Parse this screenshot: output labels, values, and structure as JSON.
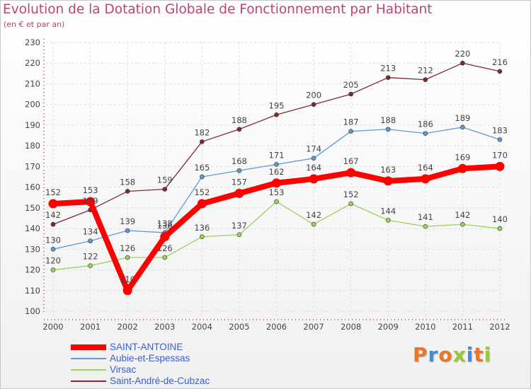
{
  "chart_data": {
    "type": "line",
    "title": "Evolution de la Dotation Globale de Fonctionnement par Habitant",
    "subtitle": "(en € et par an)",
    "xlabel": "",
    "ylabel": "",
    "ylim": [
      100,
      230
    ],
    "yticks": [
      100,
      110,
      120,
      130,
      140,
      150,
      160,
      170,
      180,
      190,
      200,
      210,
      220,
      230
    ],
    "grid": true,
    "categories": [
      "2000",
      "2001",
      "2002",
      "2003",
      "2004",
      "2005",
      "2006",
      "2007",
      "2008",
      "2009",
      "2010",
      "2011",
      "2012"
    ],
    "series": [
      {
        "name": "Saint-André-de-Cubzac",
        "color": "#7a2a30",
        "values": [
          142,
          149,
          158,
          159,
          182,
          188,
          195,
          200,
          205,
          213,
          212,
          220,
          216
        ],
        "labels": [
          "142",
          "149",
          "158",
          "159",
          "182",
          "188",
          "195",
          "200",
          "205",
          "213",
          "212",
          "220",
          "216"
        ]
      },
      {
        "name": "Aubie-et-Espessas",
        "color": "#5b9bd5",
        "values": [
          130,
          134,
          139,
          138,
          165,
          168,
          171,
          174,
          187,
          188,
          186,
          189,
          183
        ],
        "labels": [
          "130",
          "134",
          "139",
          "138",
          "165",
          "168",
          "171",
          "174",
          "187",
          "188",
          "186",
          "189",
          "183"
        ]
      },
      {
        "name": "Virsac",
        "color": "#9ed15a",
        "values": [
          120,
          122,
          126,
          126,
          136,
          137,
          153,
          142,
          152,
          144,
          141,
          142,
          140
        ],
        "labels": [
          "120",
          "122",
          "126",
          "126",
          "136",
          "137",
          "153",
          "142",
          "152",
          "144",
          "141",
          "142",
          "140"
        ]
      },
      {
        "name": "SAINT-ANTOINE",
        "color": "#ff0000",
        "values": [
          152,
          153,
          110,
          136,
          152,
          157,
          162,
          164,
          167,
          163,
          164,
          169,
          170
        ],
        "labels": [
          "152",
          "153",
          "110",
          "136",
          "152",
          "157",
          "162",
          "164",
          "167",
          "163",
          "164",
          "169",
          "170"
        ]
      }
    ],
    "legend": [
      {
        "name": "SAINT-ANTOINE",
        "color": "#ff0000"
      },
      {
        "name": "Aubie-et-Espessas",
        "color": "#5b9bd5"
      },
      {
        "name": "Virsac",
        "color": "#9ed15a"
      },
      {
        "name": "Saint-André-de-Cubzac",
        "color": "#7a2a30"
      }
    ],
    "legend_position": "bottom-left"
  },
  "logo": {
    "letters": [
      "P",
      "r",
      "o",
      "x",
      "i",
      "t",
      "i"
    ],
    "colors": [
      "#e8762c",
      "#3c8fd6",
      "#e8762c",
      "#9ac63c",
      "#3c8fd6",
      "#e8762c",
      "#9ac63c"
    ]
  }
}
